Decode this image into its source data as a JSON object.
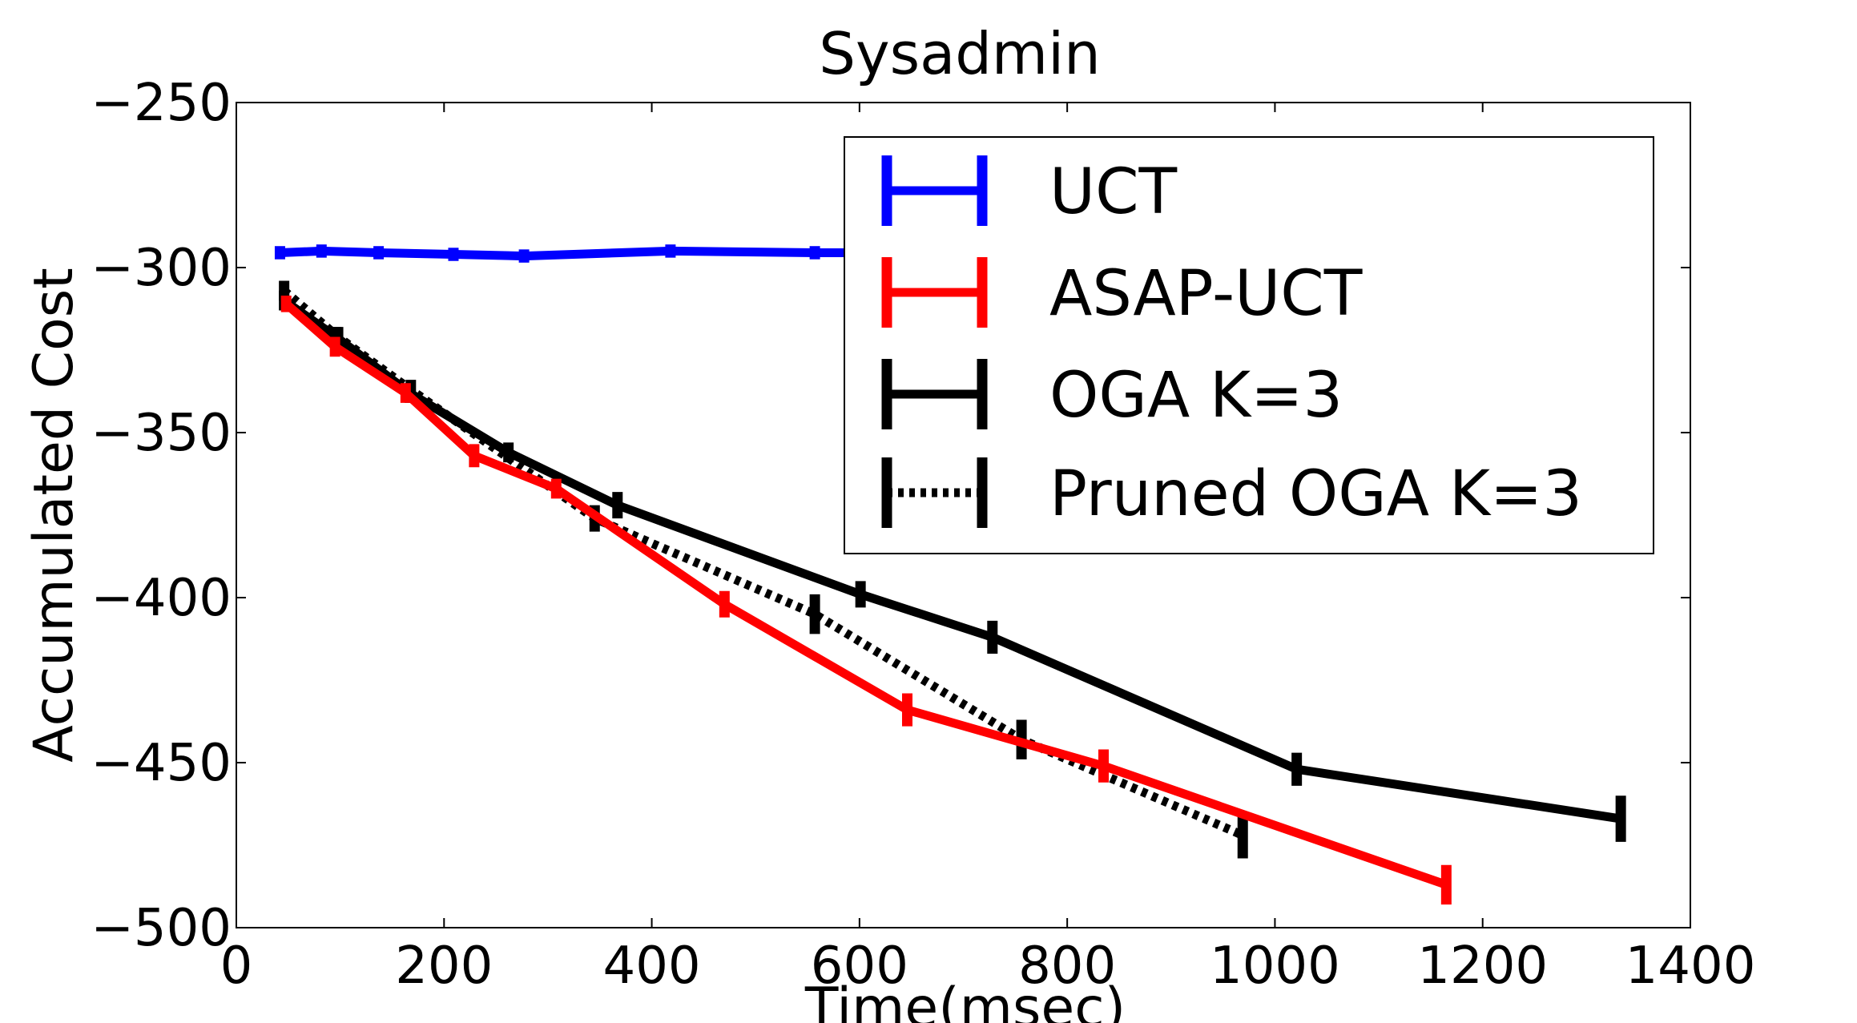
{
  "chart_data": {
    "type": "line",
    "title": "Sysadmin",
    "xlabel": "Time(msec)",
    "ylabel": "Accumulated Cost",
    "xlim": [
      0,
      1400
    ],
    "ylim": [
      -500,
      -250
    ],
    "xticks": [
      0,
      200,
      400,
      600,
      800,
      1000,
      1200,
      1400
    ],
    "yticks": [
      -500,
      -450,
      -400,
      -350,
      -300,
      -250
    ],
    "xtick_labels": [
      "0",
      "200",
      "400",
      "600",
      "800",
      "1000",
      "1200",
      "1400"
    ],
    "ytick_labels": [
      "−500",
      "−450",
      "−400",
      "−350",
      "−300",
      "−250"
    ],
    "grid": false,
    "legend_position": "top-right",
    "error_bars": true,
    "series": [
      {
        "name": "UCT",
        "color": "#0000ff",
        "style": "solid",
        "points": [
          {
            "x": 42,
            "y": -295.5,
            "err": 2
          },
          {
            "x": 82,
            "y": -295,
            "err": 2
          },
          {
            "x": 137,
            "y": -295.5,
            "err": 2
          },
          {
            "x": 209,
            "y": -296,
            "err": 2
          },
          {
            "x": 277,
            "y": -296.5,
            "err": 2
          },
          {
            "x": 418,
            "y": -295,
            "err": 2
          },
          {
            "x": 557,
            "y": -295.5,
            "err": 2
          },
          {
            "x": 700,
            "y": -295.5,
            "err": 2
          }
        ]
      },
      {
        "name": "ASAP-UCT",
        "color": "#ff0000",
        "style": "solid",
        "points": [
          {
            "x": 48,
            "y": -311,
            "err": 2.5
          },
          {
            "x": 95,
            "y": -324,
            "err": 3
          },
          {
            "x": 163,
            "y": -338,
            "err": 3
          },
          {
            "x": 229,
            "y": -357,
            "err": 3.5
          },
          {
            "x": 308,
            "y": -367,
            "err": 3
          },
          {
            "x": 470,
            "y": -402,
            "err": 4
          },
          {
            "x": 646,
            "y": -434,
            "err": 5
          },
          {
            "x": 835,
            "y": -451,
            "err": 5
          },
          {
            "x": 1165,
            "y": -487,
            "err": 6
          }
        ]
      },
      {
        "name": "OGA K=3",
        "color": "#000000",
        "style": "solid",
        "points": [
          {
            "x": 46,
            "y": -310,
            "err": 3
          },
          {
            "x": 96,
            "y": -321,
            "err": 3
          },
          {
            "x": 167,
            "y": -338,
            "err": 3
          },
          {
            "x": 262,
            "y": -356,
            "err": 3
          },
          {
            "x": 367,
            "y": -372,
            "err": 4
          },
          {
            "x": 601,
            "y": -399,
            "err": 4
          },
          {
            "x": 728,
            "y": -412,
            "err": 5
          },
          {
            "x": 1021,
            "y": -452,
            "err": 5
          },
          {
            "x": 1333,
            "y": -467,
            "err": 7
          }
        ]
      },
      {
        "name": "Pruned OGA K=3",
        "color": "#000000",
        "style": "dotted",
        "points": [
          {
            "x": 46,
            "y": -307,
            "err": 3
          },
          {
            "x": 98,
            "y": -321,
            "err": 3
          },
          {
            "x": 168,
            "y": -337,
            "err": 3
          },
          {
            "x": 345,
            "y": -376,
            "err": 4
          },
          {
            "x": 557,
            "y": -405,
            "err": 6
          },
          {
            "x": 756,
            "y": -443,
            "err": 6
          },
          {
            "x": 969,
            "y": -472,
            "err": 7
          }
        ]
      }
    ]
  }
}
